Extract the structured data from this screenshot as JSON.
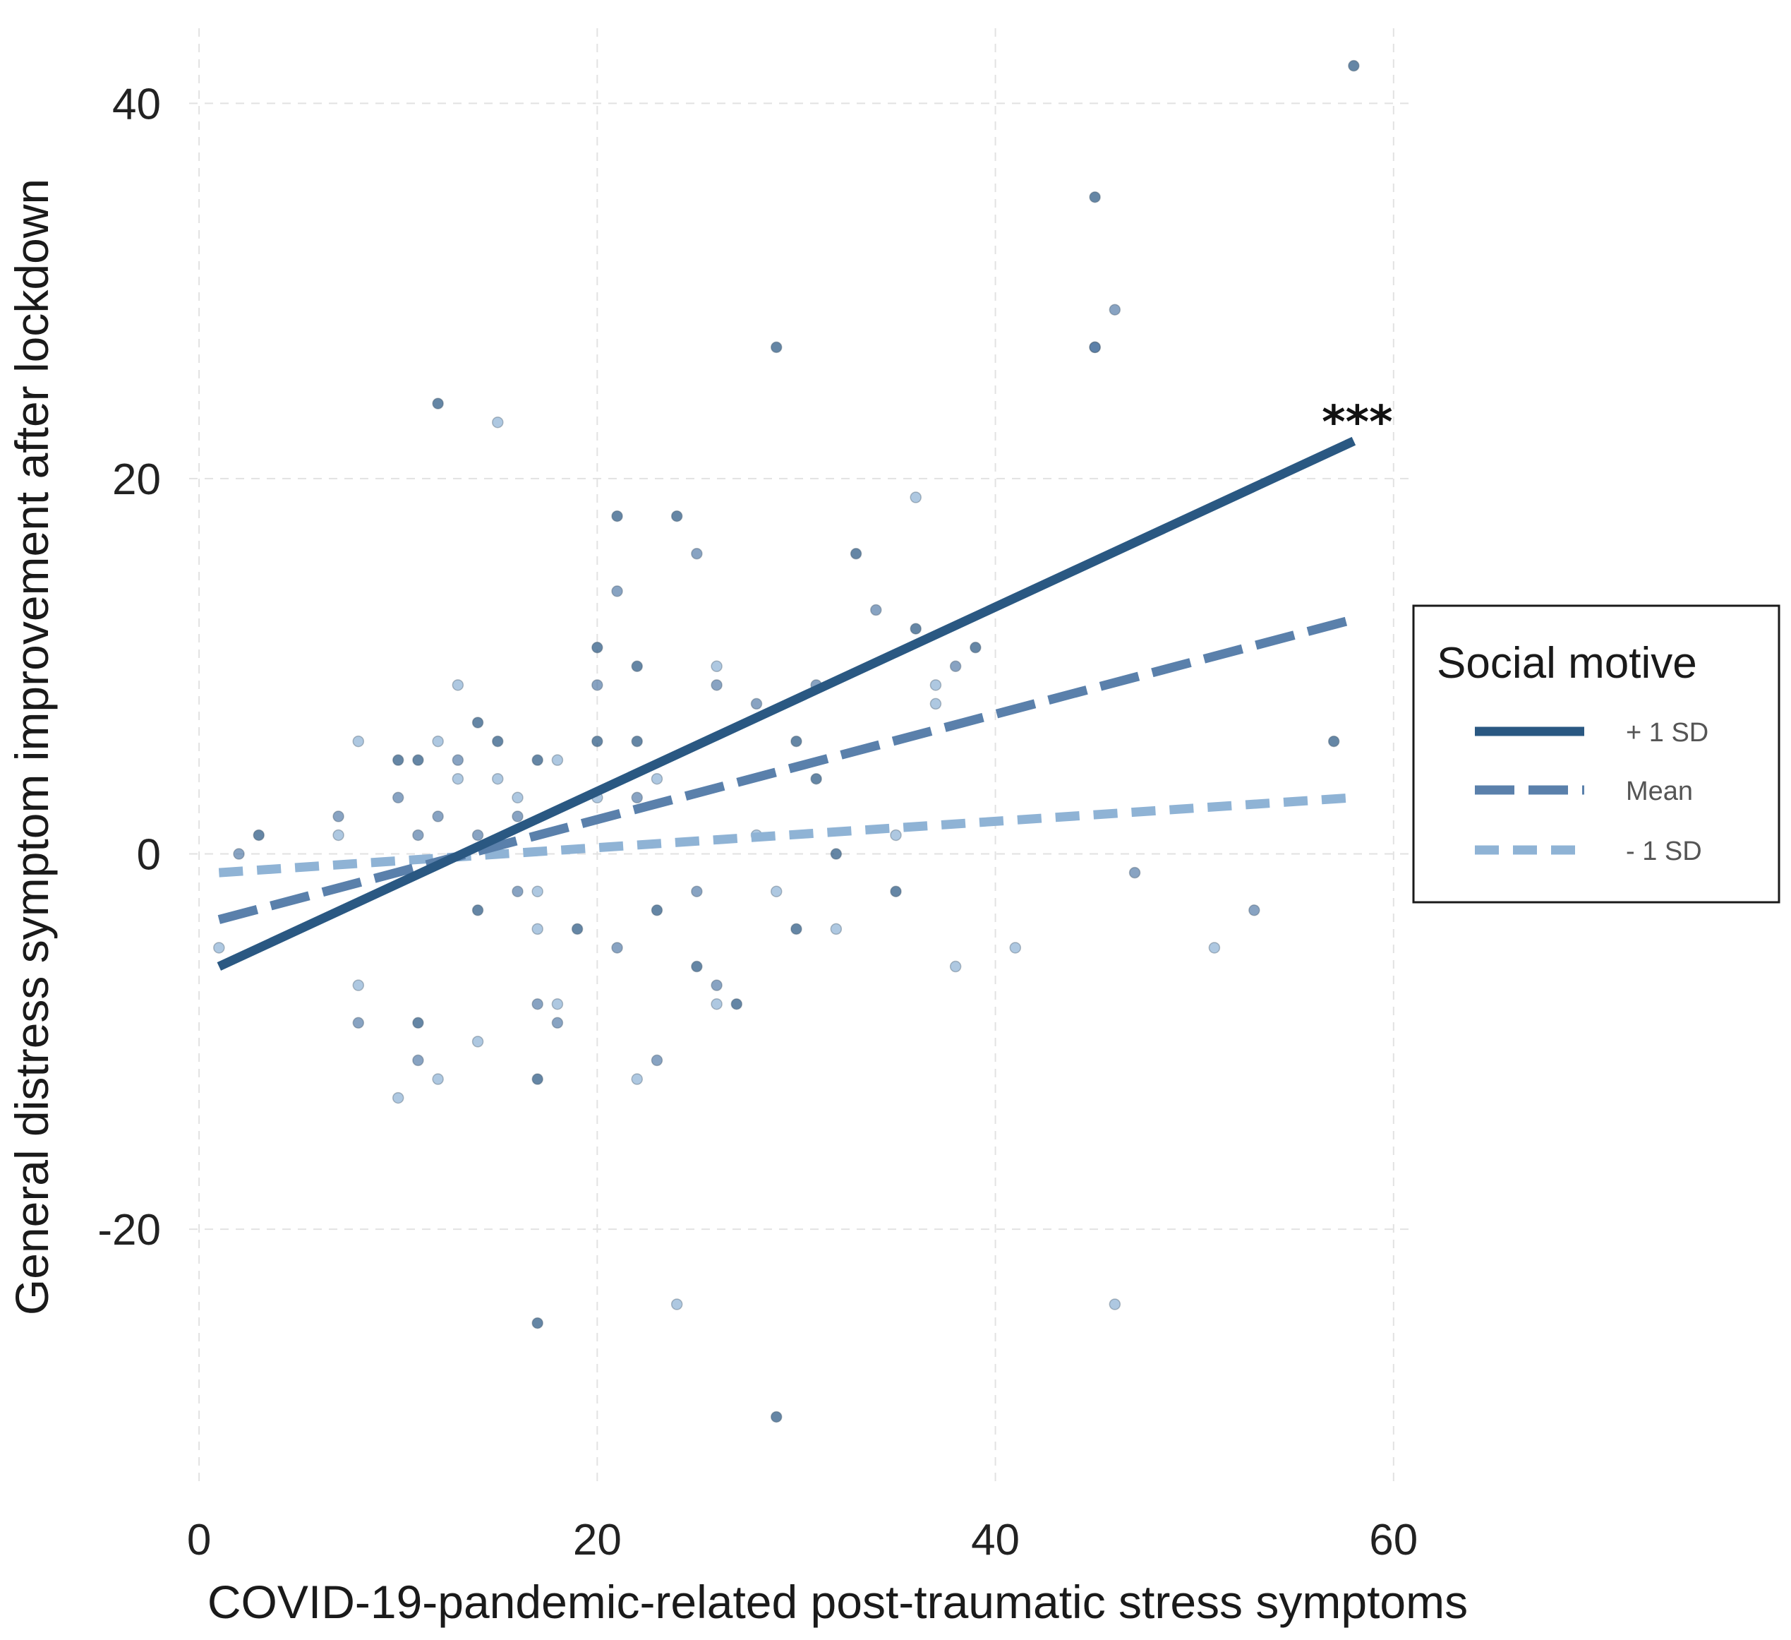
{
  "chart_data": {
    "type": "scatter",
    "title": "",
    "xlabel": "COVID-19-pandemic-related post-traumatic stress symptoms",
    "ylabel": "General distress symptom improvement after lockdown",
    "xlim": [
      -0.5,
      61
    ],
    "ylim": [
      -33.5,
      44
    ],
    "x_ticks": [
      0,
      20,
      40,
      60
    ],
    "y_ticks": [
      -20,
      0,
      20,
      40
    ],
    "x_tick_labels": [
      "0",
      "20",
      "40",
      "60"
    ],
    "y_tick_labels": [
      "-20",
      "0",
      "20",
      "40"
    ],
    "grid": true,
    "legend": {
      "title": "Social motive",
      "position": "right",
      "entries": [
        "+ 1 SD",
        "Mean",
        "- 1 SD"
      ]
    },
    "series": [
      {
        "name": "+ 1 SD",
        "color": "#2a5882",
        "line_style": "solid",
        "line": {
          "x": [
            1,
            58
          ],
          "y": [
            -6,
            22
          ]
        },
        "points": [
          [
            3,
            1
          ],
          [
            10,
            5
          ],
          [
            11,
            5
          ],
          [
            12,
            24
          ],
          [
            14,
            7
          ],
          [
            14,
            -3
          ],
          [
            15,
            6
          ],
          [
            17,
            5
          ],
          [
            17,
            -12
          ],
          [
            17,
            -25
          ],
          [
            19,
            -4
          ],
          [
            20,
            11
          ],
          [
            20,
            6
          ],
          [
            21,
            18
          ],
          [
            22,
            10
          ],
          [
            22,
            6
          ],
          [
            23,
            -3
          ],
          [
            24,
            18
          ],
          [
            25,
            -6
          ],
          [
            27,
            -8
          ],
          [
            29,
            27
          ],
          [
            30,
            6
          ],
          [
            30,
            -4
          ],
          [
            31,
            4
          ],
          [
            33,
            16
          ],
          [
            35,
            -2
          ],
          [
            36,
            12
          ],
          [
            39,
            11
          ],
          [
            45,
            35
          ],
          [
            45,
            27
          ],
          [
            58,
            42
          ],
          [
            57,
            6
          ],
          [
            29,
            -30
          ],
          [
            11,
            -9
          ],
          [
            32,
            0
          ]
        ]
      },
      {
        "name": "Mean",
        "color": "#5a80ab",
        "line_style": "long-dash",
        "line": {
          "x": [
            1,
            58
          ],
          "y": [
            -3.5,
            12.5
          ]
        },
        "points": [
          [
            2,
            0
          ],
          [
            7,
            2
          ],
          [
            8,
            -9
          ],
          [
            10,
            3
          ],
          [
            11,
            1
          ],
          [
            12,
            2
          ],
          [
            13,
            5
          ],
          [
            14,
            1
          ],
          [
            16,
            2
          ],
          [
            17,
            -8
          ],
          [
            18,
            -9
          ],
          [
            20,
            9
          ],
          [
            21,
            14
          ],
          [
            21,
            -5
          ],
          [
            22,
            3
          ],
          [
            23,
            -11
          ],
          [
            25,
            16
          ],
          [
            26,
            9
          ],
          [
            26,
            -7
          ],
          [
            28,
            8
          ],
          [
            31,
            9
          ],
          [
            34,
            13
          ],
          [
            38,
            10
          ],
          [
            45,
            27
          ],
          [
            46,
            29
          ],
          [
            47,
            -1
          ],
          [
            53,
            -3
          ],
          [
            16,
            -2
          ],
          [
            25,
            -2
          ],
          [
            11,
            -11
          ]
        ]
      },
      {
        "name": "- 1 SD",
        "color": "#8fb3d5",
        "line_style": "short-dash",
        "line": {
          "x": [
            1,
            58
          ],
          "y": [
            -1,
            3
          ]
        },
        "points": [
          [
            1,
            -5
          ],
          [
            8,
            6
          ],
          [
            8,
            -7
          ],
          [
            10,
            -13
          ],
          [
            12,
            -12
          ],
          [
            13,
            9
          ],
          [
            13,
            4
          ],
          [
            14,
            -10
          ],
          [
            15,
            23
          ],
          [
            15,
            4
          ],
          [
            16,
            3
          ],
          [
            17,
            -4
          ],
          [
            17,
            -2
          ],
          [
            18,
            5
          ],
          [
            18,
            -8
          ],
          [
            20,
            3
          ],
          [
            22,
            -12
          ],
          [
            23,
            4
          ],
          [
            24,
            -24
          ],
          [
            26,
            10
          ],
          [
            26,
            -8
          ],
          [
            28,
            1
          ],
          [
            29,
            -2
          ],
          [
            32,
            -4
          ],
          [
            35,
            1
          ],
          [
            36,
            19
          ],
          [
            37,
            9
          ],
          [
            37,
            8
          ],
          [
            38,
            -6
          ],
          [
            41,
            -5
          ],
          [
            46,
            -24
          ],
          [
            51,
            -5
          ],
          [
            12,
            6
          ],
          [
            7,
            1
          ]
        ]
      }
    ],
    "annotations": [
      {
        "text": "***",
        "x": 58,
        "y": 22
      }
    ]
  }
}
